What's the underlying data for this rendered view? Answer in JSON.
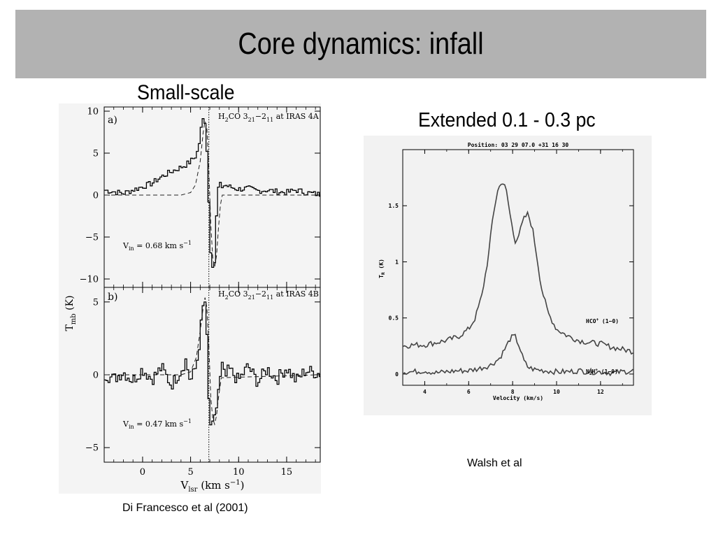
{
  "slide": {
    "title": "Core dynamics: infall",
    "left_heading": "Small-scale",
    "right_heading": "Extended  0.1 - 0.3 pc",
    "left_caption": "Di Francesco et al (2001)",
    "right_caption": "Walsh et al"
  },
  "chart_data": [
    {
      "type": "line",
      "panel": "a)",
      "title": "H2CO 3(21)-2(11) at IRAS 4A",
      "title_prefix": "H",
      "title_mid": "CO 3",
      "title_sub1": "21",
      "title_dash": "−2",
      "title_sub2": "11",
      "title_suffix": " at IRAS 4A",
      "annotation": "V_in = 0.68 km s^-1",
      "annotation_main": "V",
      "annotation_sub": "in",
      "annotation_rest": " = 0.68 km s",
      "annotation_sup": "−1",
      "ylabel": "T_mb (K)",
      "xlabel": "V_lsr (km s^-1)",
      "xlim": [
        -4,
        18.5
      ],
      "ylim": [
        -11,
        10.5
      ],
      "xticks": [
        0,
        5,
        10,
        15
      ],
      "xtick_labels": [
        "0",
        "5",
        "10",
        "15"
      ],
      "yticks": [
        10,
        5,
        0,
        -5,
        -10
      ],
      "ytick_labels": [
        "10",
        "5",
        "0",
        "−5",
        "−10"
      ],
      "vline_x": 6.9,
      "series": [
        {
          "style": "solid histogram",
          "x": [
            -4,
            -3,
            -2,
            -1,
            0,
            1,
            2,
            3,
            4,
            4.5,
            5,
            5.5,
            5.8,
            6,
            6.2,
            6.4,
            6.5,
            6.6,
            6.7,
            6.8,
            6.9,
            7.0,
            7.1,
            7.2,
            7.3,
            7.4,
            7.5,
            7.6,
            7.7,
            7.8,
            8.0,
            8.3,
            8.6,
            9,
            10,
            11,
            12,
            13,
            14,
            15,
            16,
            17,
            18.3
          ],
          "y": [
            0.6,
            0.4,
            0.2,
            0.6,
            1.0,
            1.4,
            2.2,
            2.8,
            3.3,
            3.6,
            4.0,
            4.6,
            5.4,
            7.0,
            8.8,
            9.2,
            8.8,
            7.2,
            5.4,
            2.2,
            -0.8,
            -4.0,
            -6.6,
            -7.8,
            -8.3,
            -8.8,
            -8.0,
            -5.4,
            -2.6,
            0.4,
            1.3,
            1.0,
            1.2,
            1.0,
            0.7,
            0.8,
            0.5,
            0.6,
            0.4,
            0.3,
            0.6,
            0.3,
            0.1
          ]
        },
        {
          "style": "dashed model",
          "x": [
            -4,
            4,
            5,
            5.5,
            6,
            6.3,
            6.5,
            6.7,
            6.9,
            7.1,
            7.3,
            7.5,
            7.7,
            7.9,
            8.1,
            8.3,
            18.3
          ],
          "y": [
            0,
            0,
            0.3,
            1.2,
            4.0,
            7.4,
            8.8,
            8.0,
            3.0,
            -3.4,
            -7.4,
            -8.6,
            -7.2,
            -4.0,
            -1.2,
            0,
            0
          ]
        }
      ]
    },
    {
      "type": "line",
      "panel": "b)",
      "title": "H2CO 3(21)-2(11) at IRAS 4B",
      "title_prefix": "H",
      "title_mid": "CO 3",
      "title_sub1": "21",
      "title_dash": "−2",
      "title_sub2": "11",
      "title_suffix": " at IRAS 4B",
      "annotation": "V_in = 0.47 km s^-1",
      "annotation_main": "V",
      "annotation_sub": "in",
      "annotation_rest": " = 0.47 km s",
      "annotation_sup": "−1",
      "xlim": [
        -4,
        18.5
      ],
      "ylim": [
        -6,
        6
      ],
      "xticks": [
        0,
        5,
        10,
        15
      ],
      "xtick_labels": [
        "0",
        "5",
        "10",
        "15"
      ],
      "yticks": [
        5,
        0,
        -5
      ],
      "ytick_labels": [
        "5",
        "0",
        "−5"
      ],
      "vline_x": 6.9,
      "series": [
        {
          "style": "solid histogram",
          "x": [
            -4,
            -3,
            -2,
            -1,
            0,
            1,
            2,
            3,
            4,
            4.5,
            5,
            5.5,
            5.8,
            6.1,
            6.3,
            6.5,
            6.6,
            6.7,
            6.8,
            6.9,
            7.0,
            7.1,
            7.3,
            7.5,
            7.7,
            7.9,
            8.1,
            8.3,
            8.6,
            9,
            10,
            11,
            12,
            13,
            14,
            15,
            16,
            17,
            18.3
          ],
          "y": [
            0.1,
            -0.3,
            0.2,
            -0.4,
            0.4,
            -0.3,
            0.5,
            -0.7,
            0.3,
            1.0,
            -0.5,
            0.4,
            1.4,
            3.4,
            4.6,
            5.0,
            4.2,
            2.4,
            -0.2,
            -1.8,
            -2.8,
            -3.4,
            -3.6,
            -3.1,
            -2.2,
            -1.0,
            -0.3,
            0.6,
            -0.3,
            0.4,
            -0.4,
            0.6,
            -0.5,
            0.4,
            -0.3,
            0.5,
            -0.4,
            0.3,
            0.1
          ]
        },
        {
          "style": "dashed model",
          "x": [
            -4,
            4,
            5,
            5.6,
            6.0,
            6.3,
            6.5,
            6.7,
            6.9,
            7.1,
            7.3,
            7.5,
            7.7,
            7.9,
            8.2,
            18.3
          ],
          "y": [
            0,
            0,
            0.2,
            1.2,
            3.0,
            4.6,
            5.3,
            4.6,
            2.0,
            -1.5,
            -3.0,
            -3.4,
            -2.8,
            -1.6,
            -0.2,
            0
          ]
        }
      ]
    },
    {
      "type": "line",
      "title": "Position: 03 29 07.0 +31 16 30",
      "xlabel": "Velocity (km/s)",
      "ylabel": "T_R (K)",
      "ylabel_main": "T",
      "ylabel_sub": "R",
      "ylabel_rest": " (K)",
      "xlim": [
        3,
        13.5
      ],
      "ylim": [
        -0.1,
        2.0
      ],
      "xticks": [
        4,
        6,
        8,
        10,
        12
      ],
      "xtick_labels": [
        "4",
        "6",
        "8",
        "10",
        "12"
      ],
      "yticks": [
        0,
        0.5,
        1,
        1.5
      ],
      "ytick_labels": [
        "0",
        "0.5",
        "1",
        "1.5"
      ],
      "series": [
        {
          "name": "HCO+ (1−0)",
          "label_main": "HCO",
          "label_sup": "+",
          "label_rest": " (1−0)",
          "x": [
            3,
            3.5,
            4,
            4.5,
            5,
            5.5,
            6,
            6.3,
            6.6,
            6.9,
            7.1,
            7.3,
            7.5,
            7.7,
            7.9,
            8.1,
            8.3,
            8.5,
            8.7,
            8.9,
            9.1,
            9.3,
            9.6,
            10,
            10.5,
            11,
            11.5,
            12,
            12.5,
            13,
            13.5
          ],
          "y": [
            0.25,
            0.26,
            0.26,
            0.28,
            0.3,
            0.33,
            0.4,
            0.5,
            0.7,
            1.05,
            1.4,
            1.62,
            1.72,
            1.65,
            1.4,
            1.18,
            1.25,
            1.38,
            1.43,
            1.3,
            1.05,
            0.78,
            0.55,
            0.4,
            0.34,
            0.3,
            0.28,
            0.27,
            0.24,
            0.22,
            0.2
          ]
        },
        {
          "name": "N2H+ (1−0)",
          "label_main": "N",
          "label_sub": "2",
          "label_mid": "H",
          "label_sup": "+",
          "label_rest": " (1−0)",
          "x": [
            3,
            3.5,
            4,
            4.5,
            5,
            5.5,
            6,
            6.5,
            7,
            7.4,
            7.7,
            7.9,
            8.1,
            8.3,
            8.5,
            8.7,
            9,
            9.5,
            10,
            10.5,
            11,
            11.5,
            12,
            12.5,
            13,
            13.5
          ],
          "y": [
            0.02,
            0.02,
            0.03,
            0.01,
            0.02,
            0.03,
            0.03,
            0.05,
            0.08,
            0.14,
            0.24,
            0.32,
            0.34,
            0.25,
            0.12,
            0.06,
            0.04,
            0.03,
            0.02,
            0.02,
            0.03,
            0.02,
            0.02,
            0.01,
            0.02,
            0.03
          ]
        }
      ]
    }
  ]
}
